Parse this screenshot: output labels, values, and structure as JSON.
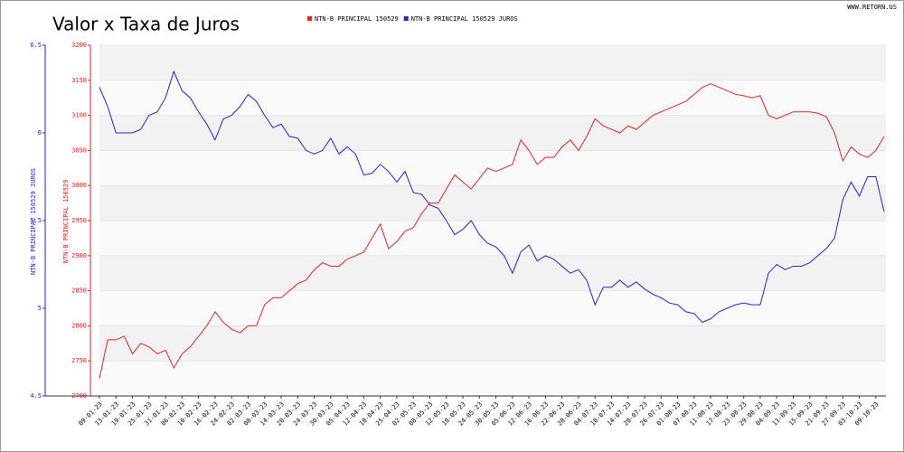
{
  "chart_data": {
    "type": "line",
    "title": "Valor x Taxa de Juros",
    "source": "WWW.RETORN.US",
    "ylabel": "NTN-B PRINCIPAL 150529",
    "y2label": "NTN-B PRINCIPAL 150529 JUROS",
    "categories": [
      "09-01-23",
      null,
      "13-01-23",
      null,
      "19-01-23",
      null,
      "25-01-23",
      null,
      "31-01-23",
      null,
      "06-02-23",
      null,
      "10-02-23",
      null,
      "16-02-23",
      null,
      "24-02-23",
      null,
      "02-03-23",
      null,
      "08-03-23",
      null,
      "14-03-23",
      null,
      "20-03-23",
      null,
      "24-03-23",
      null,
      "30-03-23",
      null,
      "05-04-23",
      null,
      "12-04-23",
      null,
      "18-04-23",
      null,
      "25-04-23",
      null,
      "02-05-23",
      null,
      "08-05-23",
      null,
      "12-05-23",
      null,
      "18-05-23",
      null,
      "24-05-23",
      null,
      "30-05-23",
      null,
      "05-06-23",
      null,
      "12-06-23",
      null,
      "16-06-23",
      null,
      "22-06-23",
      null,
      "28-06-23",
      null,
      "04-07-23",
      null,
      "10-07-23",
      null,
      "14-07-23",
      null,
      "20-07-23",
      null,
      "26-07-23",
      null,
      "01-08-23",
      null,
      "07-08-23",
      null,
      "11-08-23",
      null,
      "17-08-23",
      null,
      "23-08-23",
      null,
      "29-08-23",
      null,
      "04-09-23",
      null,
      "11-09-23",
      null,
      "15-09-23",
      null,
      "21-09-23",
      null,
      "27-09-23",
      null,
      "03-10-23",
      null,
      "09-10-23",
      null
    ],
    "series": [
      {
        "name": "NTN-B PRINCIPAL 150529",
        "color": "#ee2222",
        "values": [
          2725,
          2780,
          2780,
          2785,
          2760,
          2775,
          2770,
          2760,
          2765,
          2740,
          2760,
          2770,
          2785,
          2800,
          2820,
          2805,
          2795,
          2790,
          2800,
          2800,
          2830,
          2840,
          2840,
          2850,
          2860,
          2865,
          2880,
          2890,
          2885,
          2885,
          2895,
          2900,
          2905,
          2925,
          2945,
          2910,
          2920,
          2935,
          2940,
          2960,
          2975,
          2975,
          2995,
          3015,
          3005,
          2995,
          3010,
          3025,
          3020,
          3025,
          3030,
          3065,
          3050,
          3030,
          3040,
          3040,
          3055,
          3065,
          3050,
          3070,
          3095,
          3085,
          3080,
          3075,
          3085,
          3080,
          3090,
          3100,
          3105,
          3110,
          3115,
          3120,
          3130,
          3140,
          3145,
          3140,
          3135,
          3130,
          3128,
          3125,
          3128,
          3100,
          3095,
          3100,
          3105,
          3105,
          3105,
          3103,
          3098,
          3075,
          3035,
          3055,
          3045,
          3040,
          3050,
          3070
        ]
      },
      {
        "name": "NTN-B PRINCIPAL 150529 JUROS",
        "color": "#2222ee",
        "axis": "y2",
        "values": [
          6.26,
          6.15,
          6.0,
          6.0,
          6.0,
          6.02,
          6.1,
          6.12,
          6.2,
          6.35,
          6.24,
          6.2,
          6.12,
          6.05,
          5.96,
          6.08,
          6.1,
          6.15,
          6.22,
          6.18,
          6.1,
          6.03,
          6.05,
          5.98,
          5.97,
          5.9,
          5.88,
          5.9,
          5.97,
          5.88,
          5.92,
          5.88,
          5.76,
          5.77,
          5.82,
          5.78,
          5.72,
          5.78,
          5.66,
          5.65,
          5.59,
          5.57,
          5.5,
          5.42,
          5.45,
          5.5,
          5.42,
          5.37,
          5.35,
          5.3,
          5.2,
          5.32,
          5.36,
          5.27,
          5.3,
          5.28,
          5.24,
          5.2,
          5.22,
          5.16,
          5.02,
          5.12,
          5.12,
          5.16,
          5.12,
          5.15,
          5.11,
          5.08,
          5.06,
          5.03,
          5.02,
          4.98,
          4.97,
          4.92,
          4.94,
          4.98,
          5.0,
          5.02,
          5.03,
          5.02,
          5.02,
          5.2,
          5.25,
          5.22,
          5.24,
          5.24,
          5.26,
          5.3,
          5.34,
          5.4,
          5.62,
          5.72,
          5.64,
          5.75,
          5.75,
          5.55
        ]
      }
    ],
    "ylim": [
      2700,
      3200
    ],
    "yticks": [
      2700,
      2750,
      2800,
      2850,
      2900,
      2950,
      3000,
      3050,
      3100,
      3150,
      3200
    ],
    "y2lim": [
      4.5,
      6.5
    ],
    "y2ticks": [
      4.5,
      5,
      5.5,
      6,
      6.5
    ],
    "grid": true
  }
}
